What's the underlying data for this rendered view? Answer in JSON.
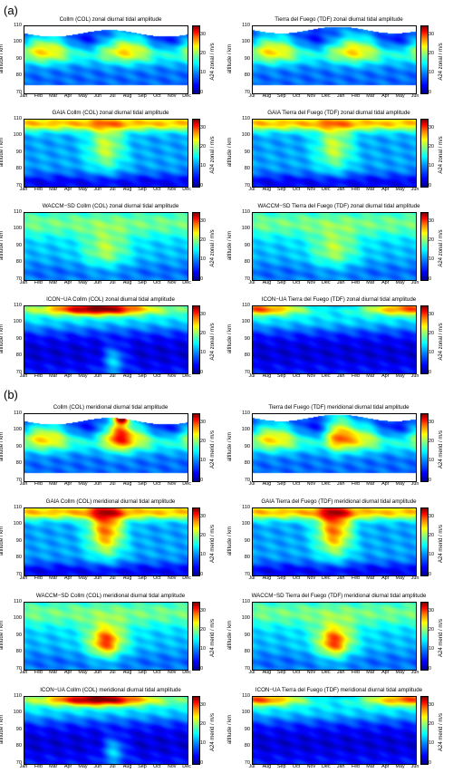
{
  "section_a": "(a)",
  "section_b": "(b)",
  "y_axis_label": "altitude / km",
  "y_ticks": [
    "110",
    "100",
    "90",
    "80",
    "70"
  ],
  "cbar_ticks": [
    "30",
    "20",
    "10",
    "0"
  ],
  "months_col": [
    "Jan",
    "Feb",
    "Mar",
    "Apr",
    "May",
    "Jun",
    "Jul",
    "Aug",
    "Sep",
    "Oct",
    "Nov",
    "Dec"
  ],
  "months_tdf": [
    "Jul",
    "Aug",
    "Sep",
    "Oct",
    "Nov",
    "Dec",
    "Jan",
    "Feb",
    "Mar",
    "Apr",
    "May",
    "Jun"
  ],
  "cbar_label_zonal": "A24 zonal / m/s",
  "cbar_label_merid": "A24 merid / m/s",
  "colors": {
    "low": "#0000ff",
    "mid": "#00ffff",
    "high": "#ff0000"
  },
  "panels": [
    {
      "title": "Collm (COL) zonal diurnal tidal amplitude",
      "site": "col",
      "comp": "zonal",
      "model": "obs"
    },
    {
      "title": "Tierra del Fuego (TDF) zonal diurnal tidal amplitude",
      "site": "tdf",
      "comp": "zonal",
      "model": "obs"
    },
    {
      "title": "GAIA Collm (COL) zonal diurnal tidal amplitude",
      "site": "col",
      "comp": "zonal",
      "model": "gaia"
    },
    {
      "title": "GAIA Tierra del Fuego (TDF) zonal diurnal tidal amplitude",
      "site": "tdf",
      "comp": "zonal",
      "model": "gaia"
    },
    {
      "title": "WACCM−SD Collm (COL)  zonal diurnal tidal amplitude",
      "site": "col",
      "comp": "zonal",
      "model": "waccm"
    },
    {
      "title": "WACCM−SD Tierra del Fuego (TDF) zonal diurnal tidal amplitude",
      "site": "tdf",
      "comp": "zonal",
      "model": "waccm"
    },
    {
      "title": "ICON−UA Collm (COL)  zonal diurnal tidal amplitude",
      "site": "col",
      "comp": "zonal",
      "model": "icon"
    },
    {
      "title": "ICON−UA Tierra del Fuego (TDF) zonal diurnal tidal amplitude",
      "site": "tdf",
      "comp": "zonal",
      "model": "icon"
    },
    {
      "title": "Collm (COL) meridional diurnal tidal amplitude",
      "site": "col",
      "comp": "merid",
      "model": "obs"
    },
    {
      "title": "Tierra del Fuego (TDF) meridional diurnal tidal amplitude",
      "site": "tdf",
      "comp": "merid",
      "model": "obs"
    },
    {
      "title": "GAIA Collm (COL) meridional diurnal tidal amplitude",
      "site": "col",
      "comp": "merid",
      "model": "gaia"
    },
    {
      "title": "GAIA Tierra del Fuego (TDF) meridional diurnal tidal amplitude",
      "site": "tdf",
      "comp": "merid",
      "model": "gaia"
    },
    {
      "title": "WACCM−SD Collm (COL)  meridional diurnal tidal amplitude",
      "site": "col",
      "comp": "merid",
      "model": "waccm"
    },
    {
      "title": "WACCM−SD Tierra del Fuego (TDF) meridional diurnal tidal amplitude",
      "site": "tdf",
      "comp": "merid",
      "model": "waccm"
    },
    {
      "title": "ICON−UA Collm (COL)  meridional diurnal tidal amplitude",
      "site": "col",
      "comp": "merid",
      "model": "icon"
    },
    {
      "title": "ICON−UA Tierra del Fuego (TDF) meridional diurnal tidal amplitude",
      "site": "tdf",
      "comp": "merid",
      "model": "icon"
    }
  ],
  "chart_data": {
    "type": "heatmap",
    "ylim": [
      70,
      110
    ],
    "clim": [
      0,
      35
    ],
    "colormap": "jet",
    "contour_levels": [
      5,
      10,
      15,
      20,
      25,
      30
    ]
  }
}
